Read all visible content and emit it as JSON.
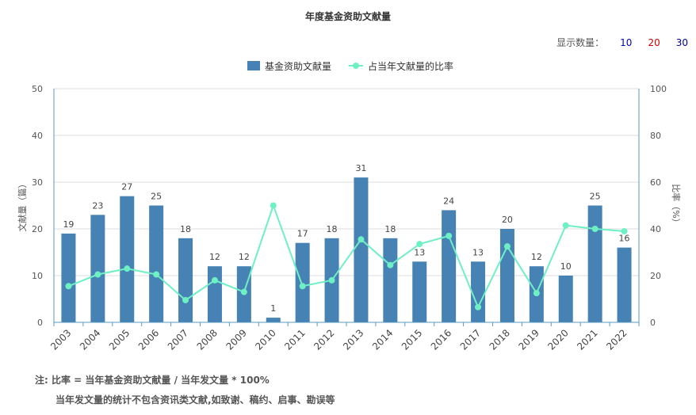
{
  "chart_data": {
    "type": "bar",
    "title": "年度基金资助文献量",
    "categories": [
      "2003",
      "2004",
      "2005",
      "2006",
      "2007",
      "2008",
      "2009",
      "2010",
      "2011",
      "2012",
      "2013",
      "2014",
      "2015",
      "2016",
      "2017",
      "2018",
      "2019",
      "2020",
      "2021",
      "2022"
    ],
    "series": [
      {
        "name": "基金资助文献量",
        "type": "bar",
        "axis": "left",
        "values": [
          19,
          23,
          27,
          25,
          18,
          12,
          12,
          1,
          17,
          18,
          31,
          18,
          13,
          24,
          13,
          20,
          12,
          10,
          25,
          16
        ]
      },
      {
        "name": "占当年文献量的比率",
        "type": "line",
        "axis": "right",
        "values": [
          15.5,
          20.5,
          23,
          20.5,
          9.5,
          18,
          13,
          50,
          15.5,
          18,
          35.5,
          24.5,
          33.5,
          37,
          6.5,
          32.5,
          12.5,
          41.5,
          40,
          39
        ]
      }
    ],
    "ylabel": "文献量（篇）",
    "ylim": [
      0,
      50
    ],
    "yticks": [
      0,
      10,
      20,
      30,
      40,
      50
    ],
    "y2label": "比率（%）",
    "y2lim": [
      0,
      100
    ],
    "y2ticks": [
      0,
      20,
      40,
      60,
      80,
      100
    ],
    "grid": true,
    "legend": "top-center",
    "colors": {
      "bar": "#4682b4",
      "line": "#6ef0c4",
      "grid": "#dddddd",
      "axis": "#5a9bbf"
    }
  },
  "count_selector": {
    "label": "显示数量：",
    "options": [
      "10",
      "20",
      "30"
    ]
  },
  "notes": {
    "line1": "注:   比率 = 当年基金资助文献量 / 当年发文量 * 100%",
    "line2": "当年发文量的统计不包含资讯类文献,如致谢、稿约、启事、勘误等"
  }
}
